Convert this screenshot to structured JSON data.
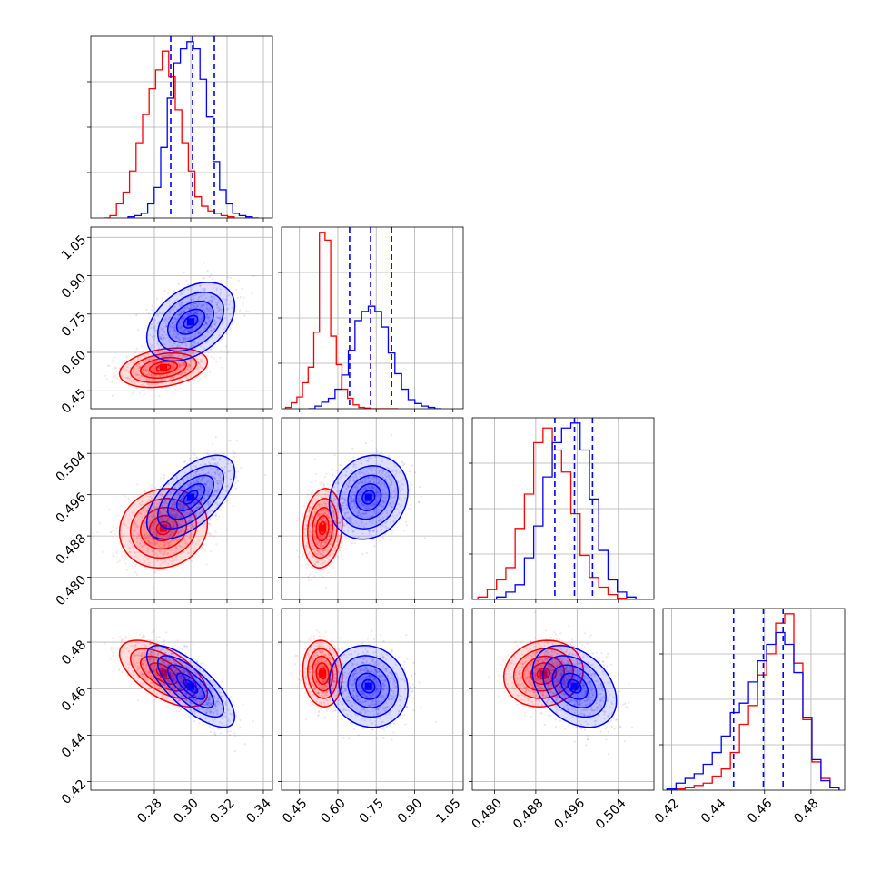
{
  "chart_data": {
    "type": "corner",
    "title": "",
    "colors": {
      "red": "#ff0000",
      "blue": "#0000ff",
      "frame": "#000000",
      "grid": "#b0b0b0"
    },
    "grid": true,
    "parameters": [
      {
        "label": "",
        "range": [
          0.245,
          0.345
        ],
        "ticks": [
          0.28,
          0.3,
          0.32,
          0.34
        ],
        "tick_labels": [
          "0.28",
          "0.30",
          "0.32",
          "0.34"
        ]
      },
      {
        "label": "",
        "range": [
          0.38,
          1.09
        ],
        "ticks": [
          0.45,
          0.6,
          0.75,
          0.9,
          1.05
        ],
        "tick_labels": [
          "0.45",
          "0.60",
          "0.75",
          "0.90",
          "1.05"
        ]
      },
      {
        "label": "",
        "range": [
          0.4757,
          0.5109
        ],
        "ticks": [
          0.48,
          0.488,
          0.496,
          0.504
        ],
        "tick_labels": [
          "0.480",
          "0.488",
          "0.496",
          "0.504"
        ]
      },
      {
        "label": "",
        "range": [
          0.4163,
          0.4945
        ],
        "ticks": [
          0.42,
          0.44,
          0.46,
          0.48
        ],
        "tick_labels": [
          "0.42",
          "0.44",
          "0.46",
          "0.48"
        ]
      }
    ],
    "series": [
      {
        "color": "red",
        "mean": [
          0.285,
          0.54,
          0.4895,
          0.4665
        ],
        "sd": [
          0.011,
          0.035,
          0.0035,
          0.0065
        ],
        "rho": [
          [
            1,
            0.3,
            0.1,
            -0.6
          ],
          [
            0.3,
            1,
            0.15,
            -0.1
          ],
          [
            0.1,
            0.15,
            1,
            0.1
          ],
          [
            -0.6,
            -0.1,
            0.1,
            1
          ]
        ],
        "hist": [
          {
            "edges": [
              0.2519,
              0.2555,
              0.2591,
              0.2627,
              0.2663,
              0.2699,
              0.2735,
              0.2771,
              0.2807,
              0.2843,
              0.2879,
              0.2915,
              0.2951,
              0.2987,
              0.3023,
              0.3059,
              0.3095,
              0.3131,
              0.3167,
              0.3203,
              0.3239
            ],
            "counts": [
              0,
              2,
              12,
              22,
              40,
              64,
              88,
              110,
              126,
              142,
              120,
              92,
              64,
              40,
              18,
              10,
              6,
              4,
              2,
              1
            ]
          },
          {
            "edges": [
              0.396,
              0.418,
              0.44,
              0.462,
              0.484,
              0.506,
              0.528,
              0.55,
              0.572,
              0.594,
              0.616,
              0.638,
              0.66,
              0.682,
              0.704,
              0.726,
              0.748,
              0.77,
              0.792,
              0.814,
              0.836
            ],
            "counts": [
              2,
              9,
              18,
              40,
              64,
              118,
              272,
              260,
              112,
              68,
              30,
              16,
              6,
              2,
              1,
              0,
              0,
              0,
              0,
              0
            ]
          },
          {
            "edges": [
              0.4768,
              0.4786,
              0.4804,
              0.4822,
              0.484,
              0.4858,
              0.4876,
              0.4894,
              0.4912,
              0.493,
              0.4948,
              0.4966,
              0.4984,
              0.5002,
              0.502,
              0.5038,
              0.5056,
              0.5074
            ],
            "counts": [
              2,
              8,
              16,
              26,
              58,
              86,
              128,
              140,
              122,
              104,
              70,
              36,
              18,
              10,
              4,
              1,
              0
            ]
          },
          {
            "edges": [
              0.418,
              0.4219,
              0.4258,
              0.4297,
              0.4336,
              0.4375,
              0.4414,
              0.4453,
              0.4492,
              0.4531,
              0.457,
              0.4609,
              0.4648,
              0.4687,
              0.4726,
              0.4765,
              0.4804,
              0.4843,
              0.4882,
              0.4921
            ],
            "counts": [
              0,
              1,
              2,
              4,
              6,
              12,
              18,
              32,
              56,
              72,
              98,
              116,
              142,
              150,
              108,
              60,
              24,
              10,
              2
            ]
          }
        ]
      },
      {
        "color": "blue",
        "mean": [
          0.3,
          0.72,
          0.4955,
          0.461
        ],
        "sd": [
          0.011,
          0.07,
          0.0037,
          0.008
        ],
        "rho": [
          [
            1,
            0.4,
            0.6,
            -0.75
          ],
          [
            0.4,
            1,
            0.15,
            -0.1
          ],
          [
            0.6,
            0.15,
            1,
            -0.35
          ],
          [
            -0.75,
            -0.1,
            -0.35,
            1
          ]
        ],
        "quantiles": [
          [
            0.289,
            0.301,
            0.313
          ],
          [
            0.646,
            0.728,
            0.81
          ],
          [
            0.4917,
            0.4955,
            0.499
          ],
          [
            0.4467,
            0.4595,
            0.468
          ]
        ],
        "hist": [
          {
            "edges": [
              0.2655,
              0.2691,
              0.2727,
              0.2763,
              0.2799,
              0.2835,
              0.2871,
              0.2907,
              0.2943,
              0.2979,
              0.3015,
              0.3051,
              0.3087,
              0.3123,
              0.3159,
              0.3195,
              0.3231,
              0.3267,
              0.3303,
              0.3339,
              0.3375
            ],
            "counts": [
              1,
              2,
              4,
              12,
              26,
              60,
              102,
              132,
              144,
              150,
              144,
              118,
              86,
              48,
              24,
              12,
              4,
              2,
              1,
              0
            ]
          },
          {
            "edges": [
              0.485,
              0.511,
              0.537,
              0.563,
              0.589,
              0.615,
              0.641,
              0.667,
              0.693,
              0.719,
              0.745,
              0.771,
              0.797,
              0.823,
              0.849,
              0.875,
              0.901,
              0.927,
              0.953,
              0.979,
              1.005
            ],
            "counts": [
              0,
              4,
              10,
              16,
              30,
              52,
              90,
              136,
              150,
              158,
              150,
              126,
              86,
              54,
              30,
              14,
              8,
              4,
              2,
              0
            ]
          },
          {
            "edges": [
              0.4768,
              0.4786,
              0.4804,
              0.4822,
              0.484,
              0.4858,
              0.4876,
              0.4894,
              0.4912,
              0.493,
              0.4948,
              0.4966,
              0.4984,
              0.5002,
              0.502,
              0.5038,
              0.5056,
              0.5074
            ],
            "counts": [
              0,
              0,
              2,
              6,
              12,
              34,
              60,
              100,
              128,
              140,
              144,
              122,
              82,
              40,
              16,
              6,
              2
            ]
          },
          {
            "edges": [
              0.418,
              0.4219,
              0.4258,
              0.4297,
              0.4336,
              0.4375,
              0.4414,
              0.4453,
              0.4492,
              0.4531,
              0.457,
              0.4609,
              0.4648,
              0.4687,
              0.4726,
              0.4765,
              0.4804,
              0.4843,
              0.4882,
              0.4921
            ],
            "counts": [
              1,
              6,
              10,
              14,
              22,
              32,
              46,
              66,
              74,
              92,
              110,
              124,
              134,
              124,
              100,
              62,
              26,
              8,
              2
            ]
          }
        ]
      }
    ]
  }
}
